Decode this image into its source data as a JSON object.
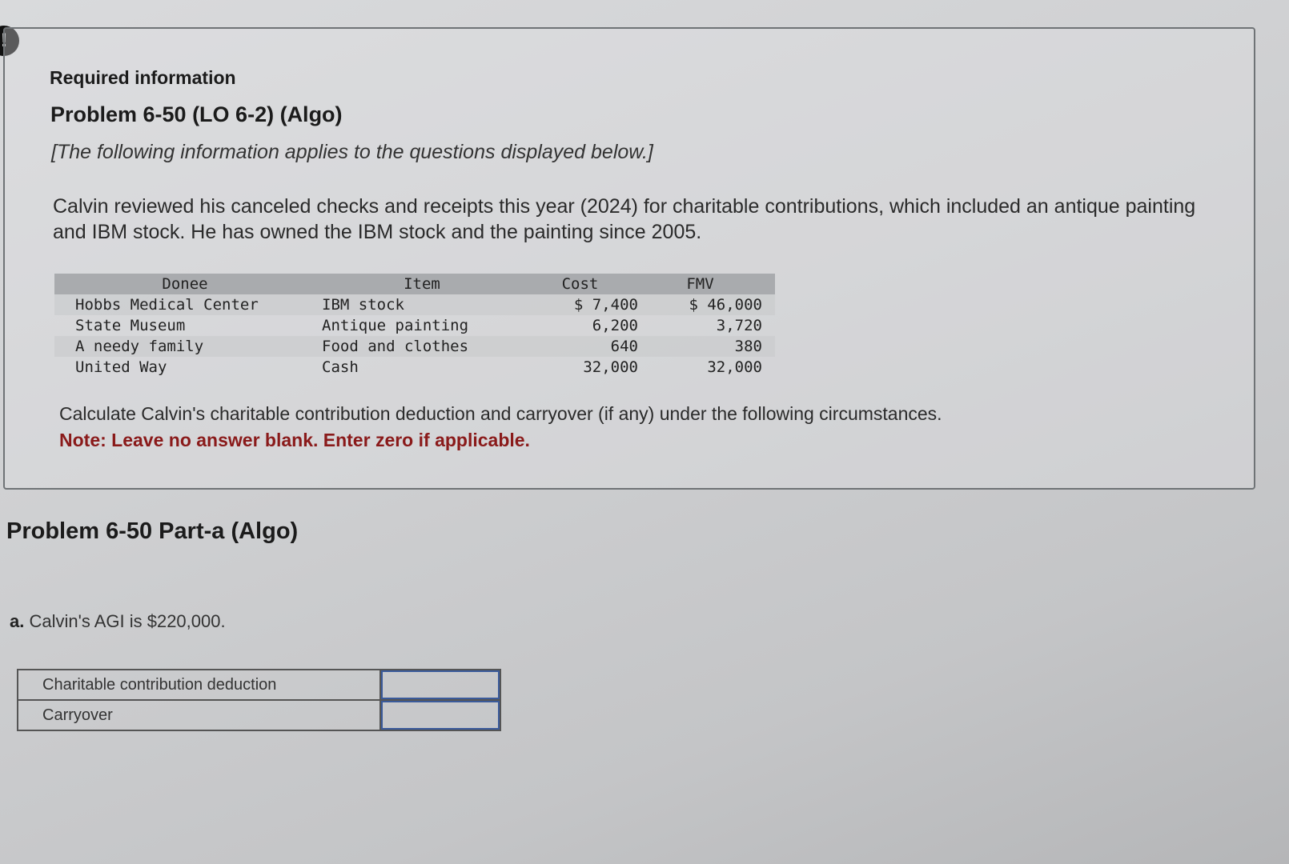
{
  "alert_icon": "!",
  "info": {
    "required_label": "Required information",
    "problem_title": "Problem 6-50 (LO 6-2) (Algo)",
    "applies_text": "[The following information applies to the questions displayed below.]",
    "description": "Calvin reviewed his canceled checks and receipts this year (2024) for charitable contributions, which included an antique painting and IBM stock. He has owned the IBM stock and the painting since 2005.",
    "table": {
      "headers": [
        "Donee",
        "Item",
        "Cost",
        "FMV"
      ],
      "rows": [
        [
          "Hobbs Medical Center",
          "IBM stock",
          "$ 7,400",
          "$ 46,000"
        ],
        [
          "State Museum",
          "Antique painting",
          "6,200",
          "3,720"
        ],
        [
          "A needy family",
          "Food and clothes",
          "640",
          "380"
        ],
        [
          "United Way",
          "Cash",
          "32,000",
          "32,000"
        ]
      ]
    },
    "calc_text": "Calculate Calvin's charitable contribution deduction and carryover (if any) under the following circumstances.",
    "note_text": "Note: Leave no answer blank. Enter zero if applicable."
  },
  "part": {
    "title": "Problem 6-50 Part-a (Algo)",
    "question_letter": "a.",
    "question_text": "Calvin's AGI is $220,000.",
    "answers": [
      {
        "label": "Charitable contribution deduction",
        "value": ""
      },
      {
        "label": "Carryover",
        "value": ""
      }
    ]
  }
}
